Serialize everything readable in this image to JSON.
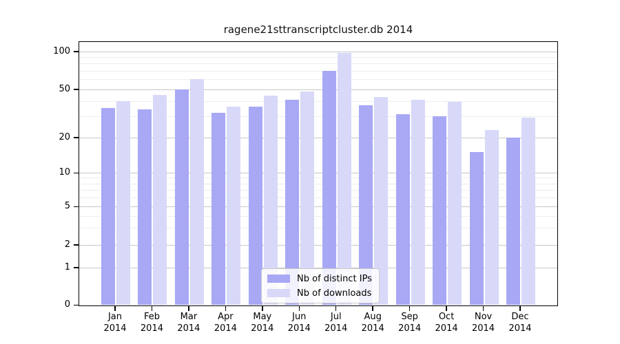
{
  "chart_data": {
    "type": "bar",
    "title": "ragene21sttranscriptcluster.db 2014",
    "categories": [
      "Jan",
      "Feb",
      "Mar",
      "Apr",
      "May",
      "Jun",
      "Jul",
      "Aug",
      "Sep",
      "Oct",
      "Nov",
      "Dec"
    ],
    "year": "2014",
    "series": [
      {
        "name": "Nb of distinct IPs",
        "color": "#a8a8f5",
        "values": [
          35,
          34,
          50,
          32,
          36,
          41,
          70,
          37,
          31,
          30,
          15,
          20
        ]
      },
      {
        "name": "Nb of downloads",
        "color": "#d8d8f9",
        "values": [
          40,
          45,
          60,
          36,
          44,
          48,
          97,
          43,
          41,
          39,
          23,
          29
        ]
      }
    ],
    "yticks": [
      0,
      1,
      2,
      5,
      10,
      20,
      50,
      100
    ],
    "ylim": [
      0,
      110
    ],
    "xlabel": "",
    "ylabel": "",
    "scale": "symlog",
    "grid": true,
    "legend_position": "bottom-center",
    "colors": {
      "distinct_ips": "#a8a8f5",
      "downloads": "#d8d8f9",
      "major_grid": "#c6c6c6",
      "minor_grid": "#ededed",
      "frame": "#000000"
    }
  }
}
